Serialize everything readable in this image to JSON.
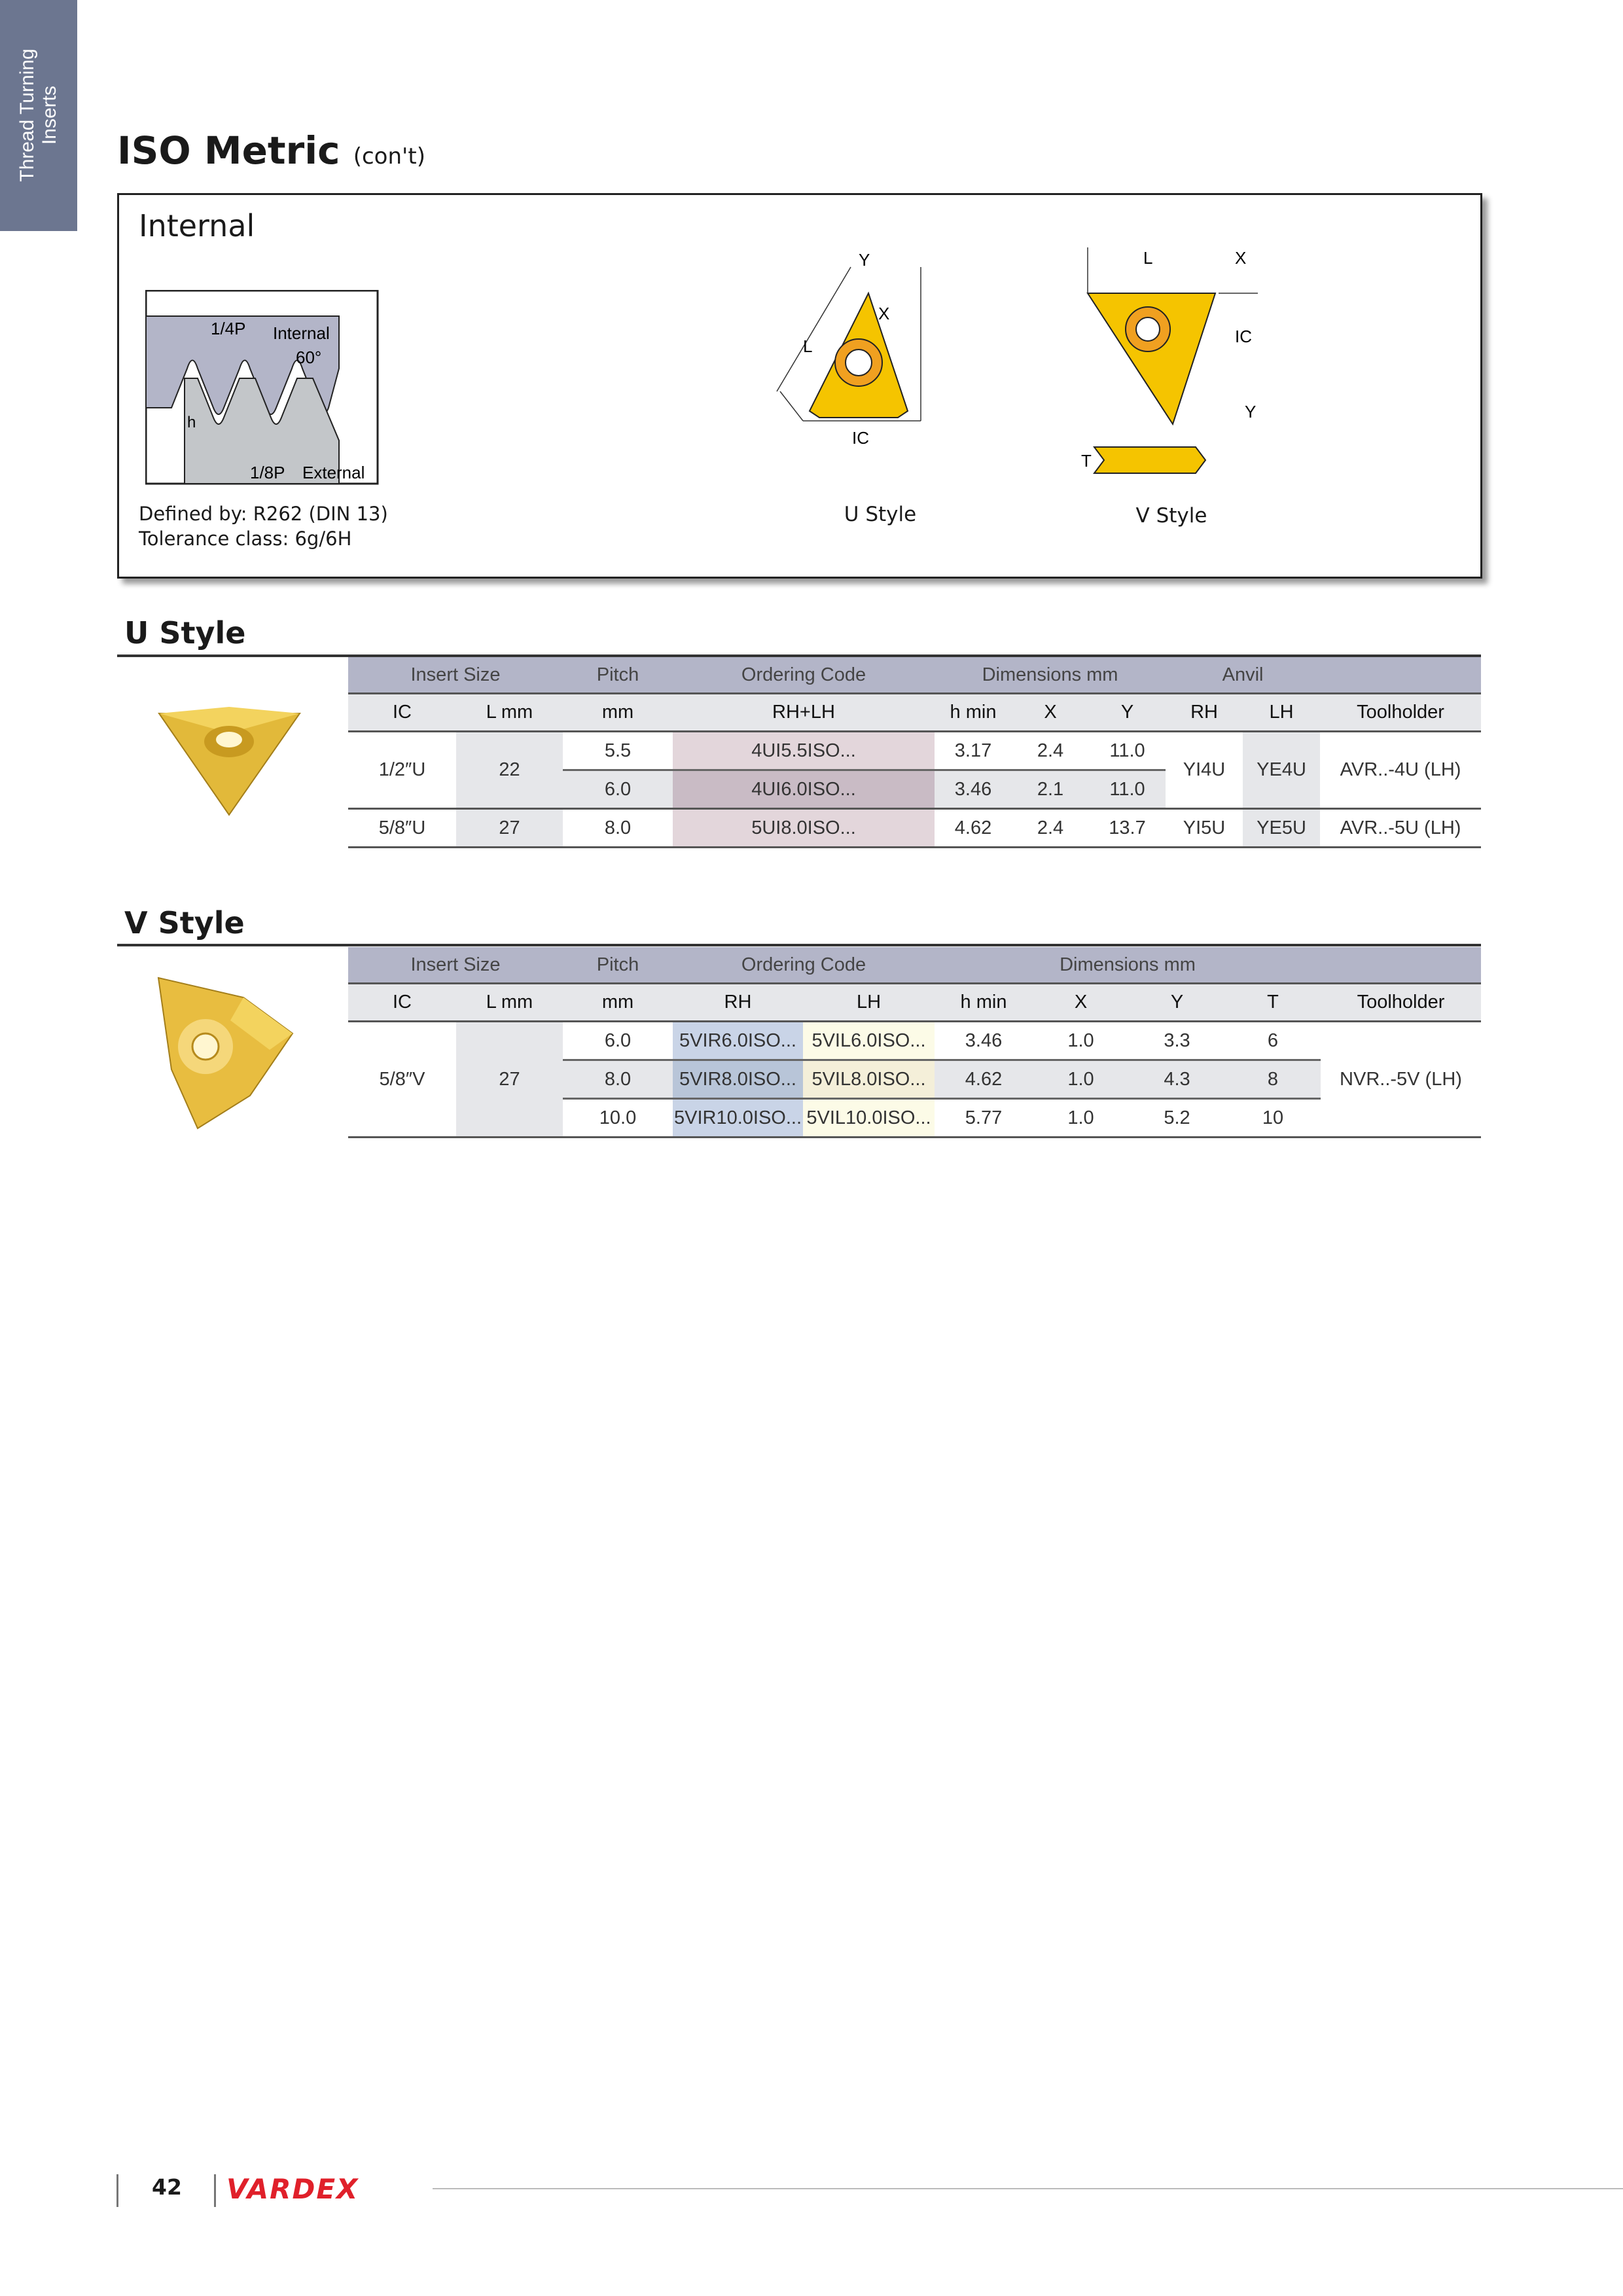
{
  "side_tab": {
    "line1": "Thread Turning",
    "line2": "Inserts"
  },
  "title": {
    "main": "ISO Metric",
    "suffix": "(con't)"
  },
  "internal_box": {
    "title": "Internal",
    "thread_labels": {
      "quarter_p": "1/4P",
      "internal": "Internal",
      "angle": "60°",
      "h": "h",
      "eighth_p": "1/8P",
      "external": "External"
    },
    "defined_by": "Defined by: R262 (DIN 13)",
    "tolerance": "Tolerance class: 6g/6H",
    "u_dims": {
      "y": "Y",
      "x": "X",
      "l": "L",
      "ic": "IC"
    },
    "v_dims": {
      "l": "L",
      "x": "X",
      "ic": "IC",
      "y": "Y",
      "t": "T"
    },
    "u_caption": "U Style",
    "v_caption": "V Style"
  },
  "colors": {
    "insert_gold": "#f5c400",
    "side_tab": "#6c7690",
    "brand_red": "#e0202a",
    "header": "#b3b5c8"
  },
  "u_table": {
    "heading": "U Style",
    "group_headers": [
      "Insert Size",
      "Pitch",
      "Ordering Code",
      "Dimensions mm",
      "Anvil"
    ],
    "columns": [
      "IC",
      "L mm",
      "mm",
      "RH+LH",
      "h min",
      "X",
      "Y",
      "RH",
      "LH",
      "Toolholder"
    ],
    "rows": [
      {
        "ic": "1/2″U",
        "l": "22",
        "pitch": "5.5",
        "code": "4UI5.5ISO...",
        "hmin": "3.17",
        "x": "2.4",
        "y": "11.0",
        "anvil_rh": "YI4U",
        "anvil_lh": "YE4U",
        "toolholder": "AVR..-4U (LH)"
      },
      {
        "pitch": "6.0",
        "code": "4UI6.0ISO...",
        "hmin": "3.46",
        "x": "2.1",
        "y": "11.0"
      },
      {
        "ic": "5/8″U",
        "l": "27",
        "pitch": "8.0",
        "code": "5UI8.0ISO...",
        "hmin": "4.62",
        "x": "2.4",
        "y": "13.7",
        "anvil_rh": "YI5U",
        "anvil_lh": "YE5U",
        "toolholder": "AVR..-5U (LH)"
      }
    ]
  },
  "v_table": {
    "heading": "V Style",
    "group_headers": [
      "Insert Size",
      "Pitch",
      "Ordering Code",
      "Dimensions mm"
    ],
    "columns": [
      "IC",
      "L mm",
      "mm",
      "RH",
      "LH",
      "h min",
      "X",
      "Y",
      "T",
      "Toolholder"
    ],
    "ic": "5/8″V",
    "l": "27",
    "toolholder": "NVR..-5V (LH)",
    "rows": [
      {
        "pitch": "6.0",
        "rh": "5VIR6.0ISO...",
        "lh": "5VIL6.0ISO...",
        "hmin": "3.46",
        "x": "1.0",
        "y": "3.3",
        "t": "6"
      },
      {
        "pitch": "8.0",
        "rh": "5VIR8.0ISO...",
        "lh": "5VIL8.0ISO...",
        "hmin": "4.62",
        "x": "1.0",
        "y": "4.3",
        "t": "8"
      },
      {
        "pitch": "10.0",
        "rh": "5VIR10.0ISO...",
        "lh": "5VIL10.0ISO...",
        "hmin": "5.77",
        "x": "1.0",
        "y": "5.2",
        "t": "10"
      }
    ]
  },
  "footer": {
    "page_number": "42",
    "brand": "VARDEX"
  }
}
